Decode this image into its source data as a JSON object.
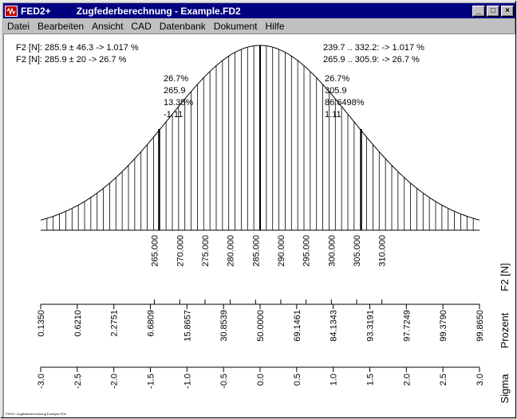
{
  "window": {
    "app_name": "FED2+",
    "document_title": "Zugfederberechnung  -  Example.FD2",
    "buttons": {
      "minimize": "_",
      "maximize": "□",
      "close": "×"
    }
  },
  "menu": [
    {
      "label": "Datei"
    },
    {
      "label": "Bearbeiten"
    },
    {
      "label": "Ansicht"
    },
    {
      "label": "CAD"
    },
    {
      "label": "Datenbank"
    },
    {
      "label": "Dokument"
    },
    {
      "label": "Hilfe"
    }
  ],
  "chart": {
    "summary_left": [
      "F2 [N]: 285.9 ± 46.3 -> 1.017 %",
      "F2 [N]: 285.9 ± 20 -> 26.7 %"
    ],
    "summary_right": [
      "239.7 .. 332.2: -> 1.017 %",
      "265.9 .. 305.9: -> 26.7 %"
    ],
    "marker_left": [
      "26.7%",
      "265.9",
      "13.35%",
      "-1.11"
    ],
    "marker_right": [
      "26.7%",
      "305.9",
      "86.6498%",
      "1.11"
    ],
    "axis_F2_label": "F2 [N]",
    "axis_prozent_label": "Prozent",
    "axis_sigma_label": "Sigma",
    "footer": "FED2+ Zugfederberechnung Example.FD2"
  },
  "chart_data": {
    "type": "area",
    "distribution": "normal",
    "mean": 285.9,
    "std": 18.0,
    "x_range": [
      242.5,
      329.3
    ],
    "markers": [
      265.9,
      305.9
    ],
    "F2_ticks": [
      265,
      270,
      275,
      280,
      285,
      290,
      295,
      300,
      305,
      310
    ],
    "F2_tick_labels": [
      "265.000",
      "270.000",
      "275.000",
      "280.000",
      "285.000",
      "290.000",
      "295.000",
      "300.000",
      "305.000",
      "310.000"
    ],
    "sigma_ticks": [
      -3.0,
      -2.5,
      -2.0,
      -1.5,
      -1.0,
      -0.5,
      0.0,
      0.5,
      1.0,
      1.5,
      2.0,
      2.5,
      3.0
    ],
    "sigma_tick_labels": [
      "-3.0",
      "-2.5",
      "-2.0",
      "-1.5",
      "-1.0",
      "-0.5",
      "0.0",
      "0.5",
      "1.0",
      "1.5",
      "2.0",
      "2.5",
      "3.0"
    ],
    "prozent_tick_labels": [
      "0.1350",
      "0.6210",
      "2.2751",
      "6.6809",
      "15.8657",
      "30.8539",
      "50.0000",
      "69.1461",
      "84.1343",
      "93.3191",
      "97.7249",
      "99.3790",
      "99.8650"
    ]
  }
}
